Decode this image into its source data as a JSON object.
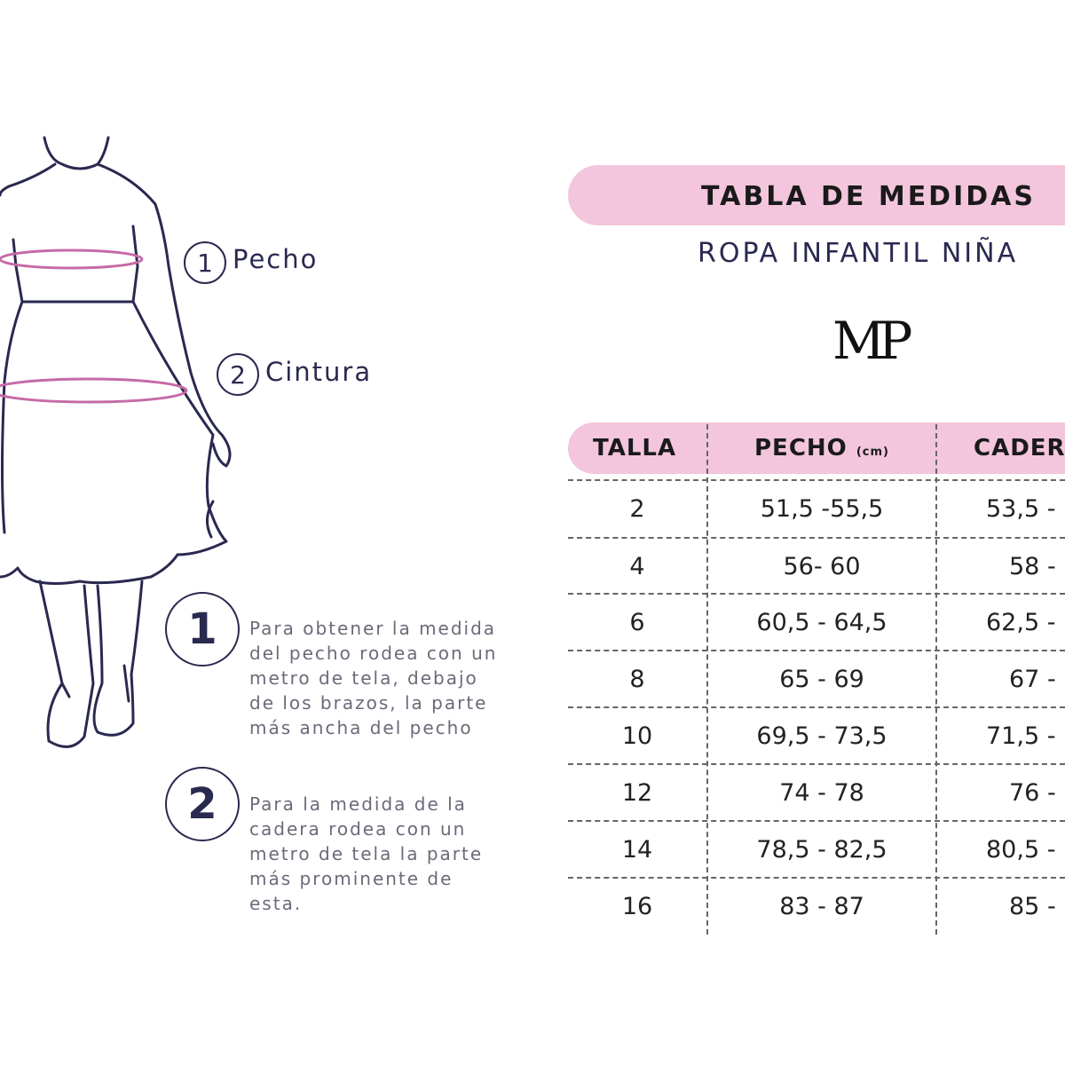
{
  "figure": {
    "labels": [
      {
        "num": "1",
        "text": "Pecho"
      },
      {
        "num": "2",
        "text": "Cintura"
      }
    ],
    "notes": [
      {
        "num": "1",
        "text": "Para obtener la medida del pecho rodea con un metro de tela, debajo de los brazos, la parte más ancha del pecho"
      },
      {
        "num": "2",
        "text": "Para la medida de la cadera rodea con un metro de tela la parte más prominente de esta."
      }
    ]
  },
  "header": {
    "title": "TABLA DE MEDIDAS",
    "subtitle": "ROPA INFANTIL NIÑA",
    "logo": "MP"
  },
  "table": {
    "columns": [
      {
        "label": "TALLA",
        "unit": ""
      },
      {
        "label": "PECHO",
        "unit": "(cm)"
      },
      {
        "label": "CADER",
        "unit": ""
      }
    ],
    "rows": [
      [
        "2",
        "51,5 -55,5",
        "53,5 -"
      ],
      [
        "4",
        "56- 60",
        "58 -"
      ],
      [
        "6",
        "60,5 - 64,5",
        "62,5 -"
      ],
      [
        "8",
        "65 - 69",
        "67 -"
      ],
      [
        "10",
        "69,5 - 73,5",
        "71,5 -"
      ],
      [
        "12",
        "74 - 78",
        "76 -"
      ],
      [
        "14",
        "78,5 - 82,5",
        "80,5 -"
      ],
      [
        "16",
        "83 - 87",
        "85 -"
      ]
    ]
  },
  "colors": {
    "navy": "#2a2950",
    "pink": "#f3c6dd",
    "measure_line": "#c66aa6"
  }
}
